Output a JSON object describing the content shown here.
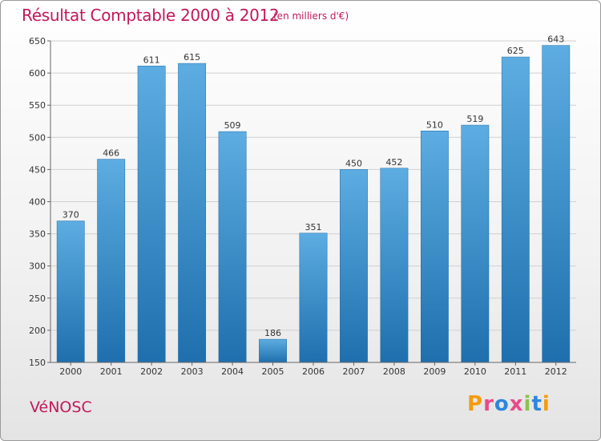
{
  "header": {
    "title": "Résultat Comptable 2000 à 2012",
    "subtitle": "(en milliers d'€)"
  },
  "footer": {
    "town": "VéNOSC",
    "logo_text": "Proxiti",
    "logo_colors": [
      "#f39c12",
      "#e84b8a",
      "#2e86de",
      "#e84b8a",
      "#8bc34a",
      "#2e86de",
      "#f39c12"
    ]
  },
  "colors": {
    "bar_light": "#5dade2",
    "bar_dark": "#1f6fae",
    "grid": "#d0d0d0",
    "title": "#c2185b"
  },
  "chart_data": {
    "type": "bar",
    "title": "Résultat Comptable 2000 à 2012",
    "subtitle": "(en milliers d'€)",
    "categories": [
      "2000",
      "2001",
      "2002",
      "2003",
      "2004",
      "2005",
      "2006",
      "2007",
      "2008",
      "2009",
      "2010",
      "2011",
      "2012"
    ],
    "values": [
      370,
      466,
      611,
      615,
      509,
      186,
      351,
      450,
      452,
      510,
      519,
      625,
      643
    ],
    "ylim": [
      150,
      650
    ],
    "yticks": [
      150,
      200,
      250,
      300,
      350,
      400,
      450,
      500,
      550,
      600,
      650
    ],
    "grid": true,
    "data_labels": true
  }
}
